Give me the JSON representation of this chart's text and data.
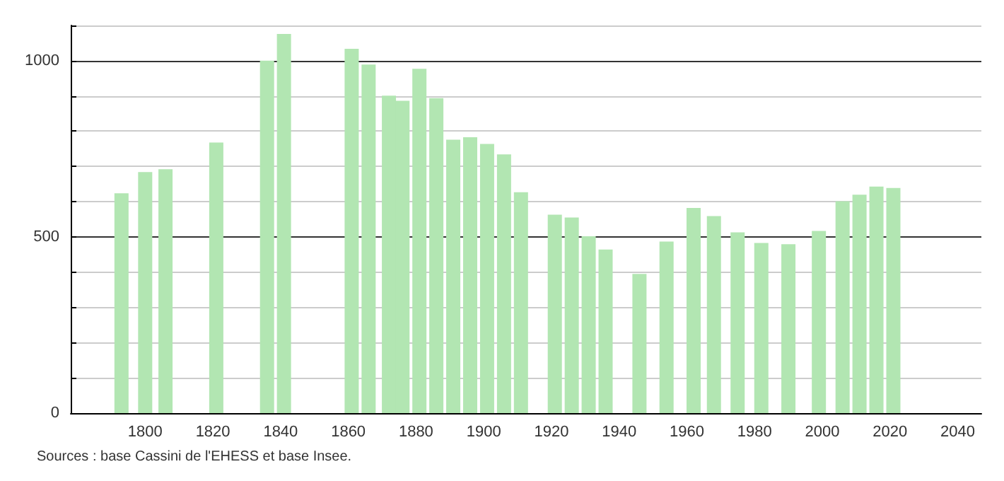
{
  "chart_data": {
    "type": "bar",
    "x": [
      1793,
      1800,
      1806,
      1821,
      1836,
      1841,
      1861,
      1866,
      1872,
      1876,
      1881,
      1886,
      1891,
      1896,
      1901,
      1906,
      1911,
      1921,
      1926,
      1931,
      1936,
      1946,
      1954,
      1962,
      1968,
      1975,
      1982,
      1990,
      1999,
      2006,
      2011,
      2016,
      2021
    ],
    "values": [
      624,
      684,
      692,
      768,
      1000,
      1076,
      1034,
      989,
      901,
      886,
      977,
      894,
      776,
      783,
      764,
      734,
      627,
      563,
      555,
      502,
      464,
      395,
      487,
      582,
      559,
      513,
      483,
      479,
      517,
      601,
      620,
      643,
      639
    ],
    "color": "#b2e6b2",
    "xlim": [
      1778,
      2047
    ],
    "xticks": [
      1800,
      1820,
      1840,
      1860,
      1880,
      1900,
      1920,
      1940,
      1960,
      1980,
      2000,
      2020,
      2040
    ],
    "ylim": [
      0,
      1100
    ],
    "yticks": [
      0,
      {
        "value": 100,
        "label": null
      },
      {
        "value": 200,
        "label": null
      },
      {
        "value": 300,
        "label": null
      },
      {
        "value": 400,
        "label": null
      },
      500,
      {
        "value": 600,
        "label": null
      },
      {
        "value": 700,
        "label": null
      },
      {
        "value": 800,
        "label": null
      },
      {
        "value": 900,
        "label": null
      },
      1000,
      {
        "value": 1100,
        "label": null
      }
    ],
    "grid": "y",
    "annotations": [
      "Sources : base Cassini de l'EHESS et base Insee."
    ]
  }
}
